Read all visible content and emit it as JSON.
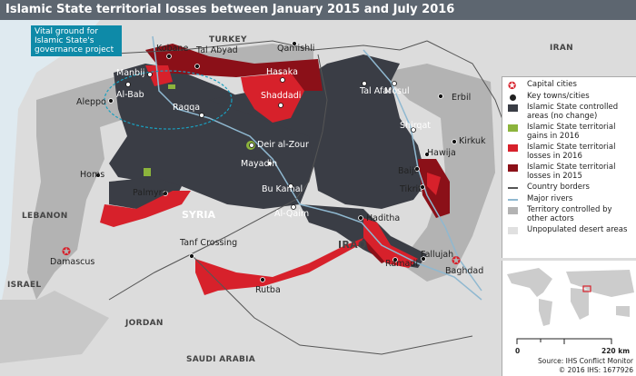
{
  "title": "Islamic State territorial losses between January 2015 and July 2016",
  "callout": "Vital ground for Islamic State's governance project",
  "countries": [
    "TURKEY",
    "IRAN",
    "LEBANON",
    "SYRIA",
    "IRAQ",
    "ISRAEL",
    "JORDAN",
    "SAUDI ARABIA"
  ],
  "cities": [
    "Kobane",
    "Tal Abyad",
    "Qamishli",
    "Hasaka",
    "Manbij",
    "Al-Bab",
    "Aleppo",
    "Raqqa",
    "Shaddadi",
    "Tal Afar",
    "Mosul",
    "Erbil",
    "Shirqat",
    "Kirkuk",
    "Hawija",
    "Baiji",
    "Tikrit",
    "Deir al-Zour",
    "Mayadin",
    "Bu Kamal",
    "Al-Qaim",
    "Haditha",
    "Ramadi",
    "Fallujah",
    "Rutba",
    "Tanf Crossing",
    "Homs",
    "Palmyra"
  ],
  "capitals": [
    "Damascus",
    "Baghdad"
  ],
  "legend": [
    {
      "label": "Capital cities",
      "icon": "capital-star-icon",
      "color": "#d7212b"
    },
    {
      "label": "Key towns/cities",
      "icon": "dot-icon",
      "color": "#222222"
    },
    {
      "label": "Islamic State controlled areas (no change)",
      "color": "#3a3d45"
    },
    {
      "label": "Islamic State territorial gains in 2016",
      "color": "#8cb43c"
    },
    {
      "label": "Islamic State territorial losses in 2016",
      "color": "#d7212b"
    },
    {
      "label": "Islamic State territorial losses in 2015",
      "color": "#8b1018"
    },
    {
      "label": "Country borders",
      "icon": "line",
      "color": "#555555"
    },
    {
      "label": "Major rivers",
      "icon": "line",
      "color": "#8fb8d0"
    },
    {
      "label": "Territory controlled by other actors",
      "color": "#b3b3b3"
    },
    {
      "label": "Unpopulated desert areas",
      "color": "#e0e0e0"
    }
  ],
  "scale": {
    "min": "0",
    "max": "220 km"
  },
  "source": "Source: IHS Conflict Monitor",
  "copyright": "© 2016 IHS: 1677926"
}
